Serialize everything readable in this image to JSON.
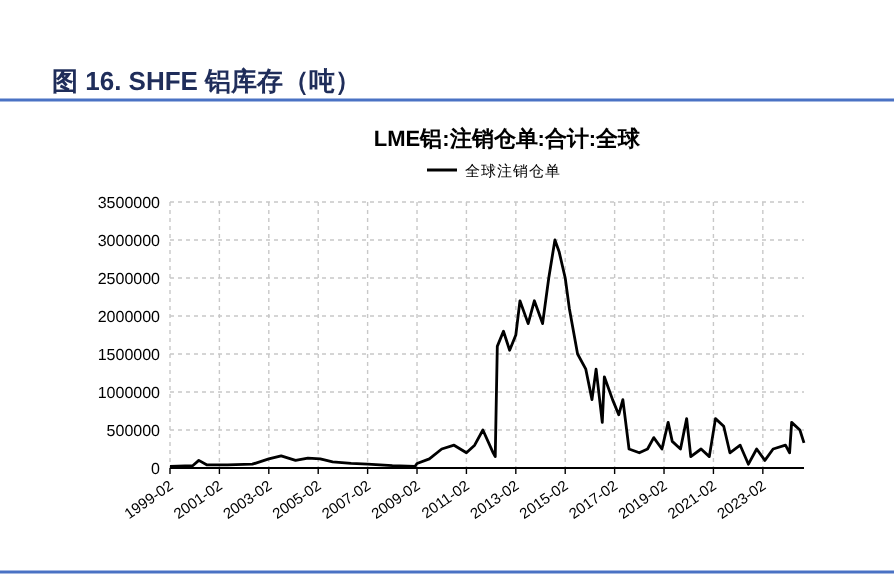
{
  "chart_data": {
    "type": "line",
    "title": "图 16. SHFE 铝库存（吨）",
    "subtitle": "LME铝:注销仓单:合计:全球",
    "x": [
      "1999-02",
      "2000-01",
      "2000-04",
      "2000-08",
      "2001-06",
      "2002-06",
      "2003-02",
      "2003-08",
      "2004-03",
      "2004-09",
      "2005-03",
      "2005-09",
      "2006-06",
      "2007-02",
      "2008-02",
      "2009-01",
      "2009-02",
      "2009-08",
      "2010-02",
      "2010-08",
      "2011-02",
      "2011-06",
      "2011-10",
      "2012-03",
      "2012-04",
      "2012-05",
      "2012-08",
      "2012-11",
      "2013-02",
      "2013-04",
      "2013-08",
      "2013-11",
      "2014-03",
      "2014-06",
      "2014-09",
      "2014-11",
      "2015-02",
      "2015-04",
      "2015-08",
      "2015-12",
      "2016-03",
      "2016-05",
      "2016-08",
      "2016-09",
      "2017-01",
      "2017-04",
      "2017-06",
      "2017-09",
      "2018-02",
      "2018-06",
      "2018-09",
      "2019-01",
      "2019-04",
      "2019-06",
      "2019-10",
      "2020-01",
      "2020-03",
      "2020-08",
      "2020-12",
      "2021-03",
      "2021-07",
      "2021-10",
      "2022-03",
      "2022-07",
      "2022-11",
      "2023-03",
      "2023-07",
      "2024-01",
      "2024-03",
      "2024-04",
      "2024-08",
      "2024-10"
    ],
    "series": [
      {
        "name": "全球注销仓单",
        "color": "#000000",
        "values": [
          20000,
          30000,
          100000,
          40000,
          40000,
          50000,
          120000,
          160000,
          100000,
          130000,
          120000,
          80000,
          60000,
          50000,
          30000,
          20000,
          60000,
          120000,
          250000,
          300000,
          200000,
          300000,
          500000,
          200000,
          150000,
          1600000,
          1800000,
          1550000,
          1750000,
          2200000,
          1900000,
          2200000,
          1900000,
          2500000,
          3000000,
          2850000,
          2500000,
          2100000,
          1500000,
          1300000,
          900000,
          1300000,
          600000,
          1200000,
          900000,
          700000,
          900000,
          250000,
          200000,
          250000,
          400000,
          250000,
          600000,
          350000,
          250000,
          650000,
          150000,
          250000,
          150000,
          650000,
          550000,
          200000,
          300000,
          50000,
          250000,
          100000,
          250000,
          300000,
          200000,
          600000,
          500000,
          330000
        ]
      }
    ],
    "xlim": [
      "1999-02",
      "2024-10"
    ],
    "xticks": [
      "1999-02",
      "2001-02",
      "2003-02",
      "2005-02",
      "2007-02",
      "2009-02",
      "2011-02",
      "2013-02",
      "2015-02",
      "2017-02",
      "2019-02",
      "2021-02",
      "2023-02"
    ],
    "ylim": [
      0,
      3500000
    ],
    "yticks": [
      0,
      500000,
      1000000,
      1500000,
      2000000,
      2500000,
      3000000,
      3500000
    ],
    "grid": true,
    "legend": "top",
    "line_style": "solid"
  }
}
